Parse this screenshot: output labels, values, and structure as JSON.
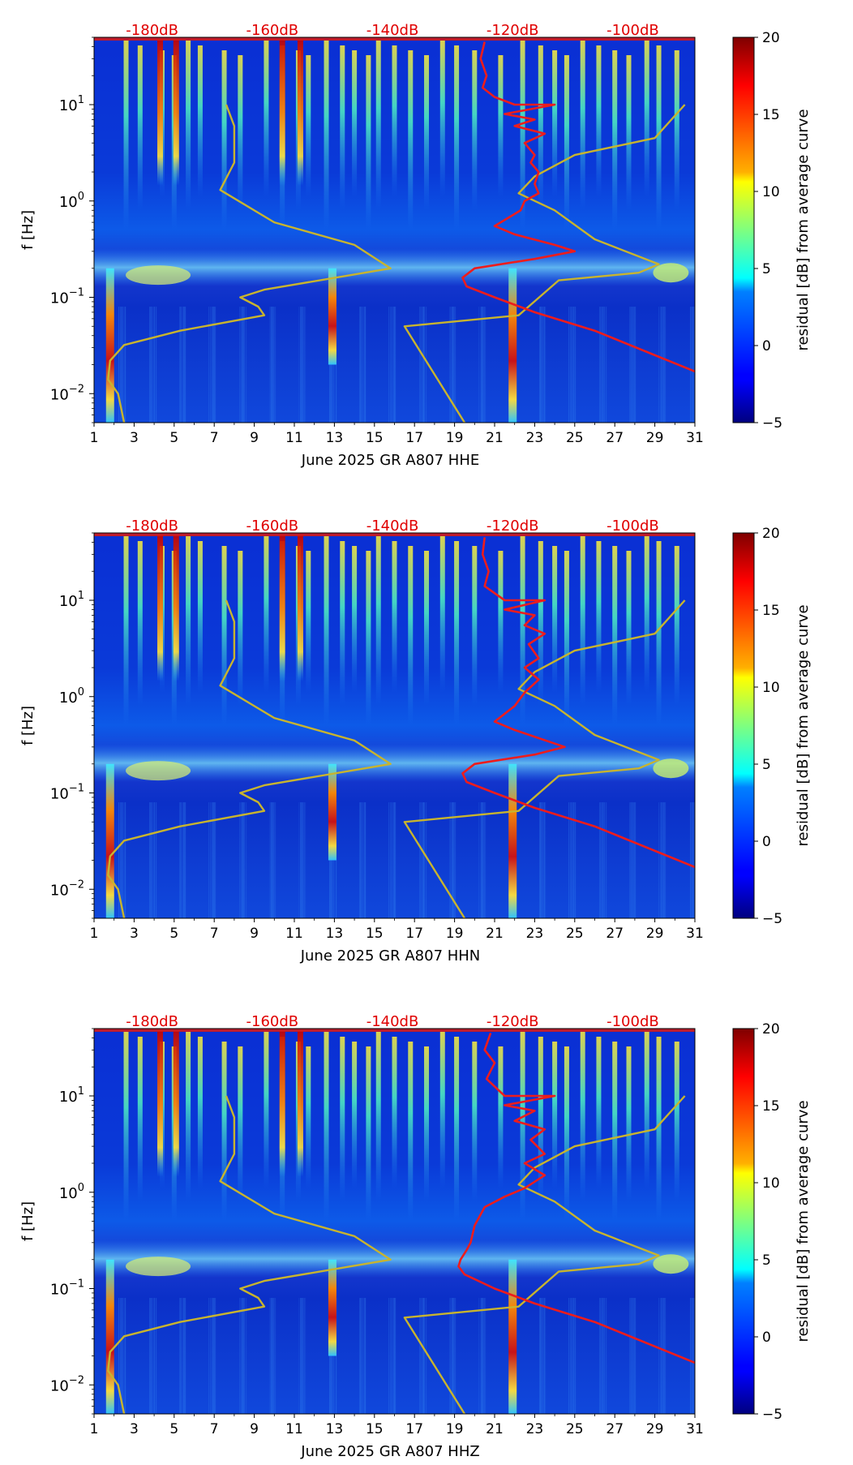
{
  "chart_data": [
    {
      "type": "heatmap",
      "title": "",
      "xlabel": "June 2025 GR A807  HHE",
      "ylabel": "f [Hz]",
      "x_ticks": [
        "1",
        "3",
        "5",
        "7",
        "9",
        "11",
        "13",
        "15",
        "17",
        "19",
        "21",
        "23",
        "25",
        "27",
        "29",
        "31"
      ],
      "xlim": [
        1,
        31
      ],
      "y_ticks": [
        "10^-2",
        "10^-1",
        "10^0",
        "10^1"
      ],
      "ylim_hz": [
        0.005,
        50
      ],
      "top_axis_ticks": [
        "-180dB",
        "-160dB",
        "-140dB",
        "-120dB",
        "-100dB"
      ],
      "colorbar": {
        "label": "residual [dB] from average curve",
        "ticks": [
          "20",
          "15",
          "10",
          "5",
          "0",
          "−5"
        ],
        "range": [
          -5,
          20
        ]
      },
      "series": [
        {
          "name": "noise model (yellow)",
          "color": "#c8b42e",
          "points": [
            [
              7.6,
              10
            ],
            [
              8.0,
              6
            ],
            [
              8.0,
              2.5
            ],
            [
              7.3,
              1.3
            ],
            [
              10,
              0.6
            ],
            [
              14,
              0.35
            ],
            [
              15.8,
              0.2
            ],
            [
              9.5,
              0.12
            ],
            [
              8.3,
              0.1
            ],
            [
              9.2,
              0.08
            ],
            [
              9.5,
              0.065
            ],
            [
              5.3,
              0.045
            ],
            [
              2.5,
              0.032
            ],
            [
              1.8,
              0.022
            ],
            [
              1.7,
              0.014
            ],
            [
              2.2,
              0.01
            ],
            [
              2.5,
              0.005
            ]
          ]
        },
        {
          "name": "noise model (yellow)",
          "color": "#c8b42e",
          "points": [
            [
              19.5,
              0.005
            ],
            [
              16.5,
              0.05
            ],
            [
              22.2,
              0.065
            ],
            [
              24.2,
              0.15
            ],
            [
              28.2,
              0.18
            ],
            [
              29.2,
              0.22
            ],
            [
              26,
              0.4
            ],
            [
              24,
              0.8
            ],
            [
              22.2,
              1.2
            ],
            [
              23,
              1.8
            ],
            [
              25,
              3
            ],
            [
              29,
              4.5
            ],
            [
              30.5,
              10
            ]
          ]
        },
        {
          "name": "average spectrum (red)",
          "color": "#ee1c1c",
          "points": [
            [
              20.5,
              45
            ],
            [
              20.3,
              30
            ],
            [
              20.6,
              20
            ],
            [
              20.4,
              15
            ],
            [
              21,
              12
            ],
            [
              22,
              10
            ],
            [
              24,
              10
            ],
            [
              21.5,
              8
            ],
            [
              23,
              7
            ],
            [
              22,
              6
            ],
            [
              23.5,
              5
            ],
            [
              22.5,
              4
            ],
            [
              23,
              3
            ],
            [
              22.8,
              2.5
            ],
            [
              23.2,
              2
            ],
            [
              23,
              1.5
            ],
            [
              23.2,
              1.2
            ],
            [
              22.5,
              1
            ],
            [
              22.3,
              0.8
            ],
            [
              21,
              0.55
            ],
            [
              22,
              0.45
            ],
            [
              24,
              0.35
            ],
            [
              25,
              0.3
            ],
            [
              23,
              0.25
            ],
            [
              20,
              0.2
            ],
            [
              19.4,
              0.16
            ],
            [
              19.6,
              0.13
            ],
            [
              21,
              0.1
            ],
            [
              23,
              0.07
            ],
            [
              26,
              0.045
            ],
            [
              31,
              0.017
            ]
          ]
        }
      ]
    },
    {
      "type": "heatmap",
      "title": "",
      "xlabel": "June 2025 GR A807  HHN",
      "ylabel": "f [Hz]",
      "x_ticks": [
        "1",
        "3",
        "5",
        "7",
        "9",
        "11",
        "13",
        "15",
        "17",
        "19",
        "21",
        "23",
        "25",
        "27",
        "29",
        "31"
      ],
      "xlim": [
        1,
        31
      ],
      "y_ticks": [
        "10^-2",
        "10^-1",
        "10^0",
        "10^1"
      ],
      "ylim_hz": [
        0.005,
        50
      ],
      "top_axis_ticks": [
        "-180dB",
        "-160dB",
        "-140dB",
        "-120dB",
        "-100dB"
      ],
      "colorbar": {
        "label": "residual [dB] from average curve",
        "ticks": [
          "20",
          "15",
          "10",
          "5",
          "0",
          "−5"
        ],
        "range": [
          -5,
          20
        ]
      },
      "series": [
        {
          "name": "noise model (yellow)",
          "color": "#c8b42e",
          "points": [
            [
              7.6,
              10
            ],
            [
              8.0,
              6
            ],
            [
              8.0,
              2.5
            ],
            [
              7.3,
              1.3
            ],
            [
              10,
              0.6
            ],
            [
              14,
              0.35
            ],
            [
              15.8,
              0.2
            ],
            [
              9.5,
              0.12
            ],
            [
              8.3,
              0.1
            ],
            [
              9.2,
              0.08
            ],
            [
              9.5,
              0.065
            ],
            [
              5.3,
              0.045
            ],
            [
              2.5,
              0.032
            ],
            [
              1.8,
              0.022
            ],
            [
              1.7,
              0.014
            ],
            [
              2.2,
              0.01
            ],
            [
              2.5,
              0.005
            ]
          ]
        },
        {
          "name": "noise model (yellow)",
          "color": "#c8b42e",
          "points": [
            [
              19.5,
              0.005
            ],
            [
              16.5,
              0.05
            ],
            [
              22.2,
              0.065
            ],
            [
              24.2,
              0.15
            ],
            [
              28.2,
              0.18
            ],
            [
              29.2,
              0.22
            ],
            [
              26,
              0.4
            ],
            [
              24,
              0.8
            ],
            [
              22.2,
              1.2
            ],
            [
              23,
              1.8
            ],
            [
              25,
              3
            ],
            [
              29,
              4.5
            ],
            [
              30.5,
              10
            ]
          ]
        },
        {
          "name": "average spectrum (red)",
          "color": "#ee1c1c",
          "points": [
            [
              20.5,
              45
            ],
            [
              20.4,
              30
            ],
            [
              20.7,
              20
            ],
            [
              20.5,
              14
            ],
            [
              21.5,
              10
            ],
            [
              23.5,
              10
            ],
            [
              21.5,
              8
            ],
            [
              23,
              7
            ],
            [
              22.5,
              5.5
            ],
            [
              23.5,
              4.5
            ],
            [
              22.7,
              3.5
            ],
            [
              23.2,
              2.5
            ],
            [
              22.5,
              2
            ],
            [
              23.2,
              1.5
            ],
            [
              22.5,
              1.1
            ],
            [
              22,
              0.8
            ],
            [
              21,
              0.55
            ],
            [
              22,
              0.45
            ],
            [
              24.5,
              0.3
            ],
            [
              23,
              0.25
            ],
            [
              20,
              0.2
            ],
            [
              19.4,
              0.16
            ],
            [
              19.6,
              0.13
            ],
            [
              21,
              0.1
            ],
            [
              23,
              0.07
            ],
            [
              26,
              0.045
            ],
            [
              31,
              0.017
            ]
          ]
        }
      ]
    },
    {
      "type": "heatmap",
      "title": "",
      "xlabel": "June 2025 GR A807  HHZ",
      "ylabel": "f [Hz]",
      "x_ticks": [
        "1",
        "3",
        "5",
        "7",
        "9",
        "11",
        "13",
        "15",
        "17",
        "19",
        "21",
        "23",
        "25",
        "27",
        "29",
        "31"
      ],
      "xlim": [
        1,
        31
      ],
      "y_ticks": [
        "10^-2",
        "10^-1",
        "10^0",
        "10^1"
      ],
      "ylim_hz": [
        0.005,
        50
      ],
      "top_axis_ticks": [
        "-180dB",
        "-160dB",
        "-140dB",
        "-120dB",
        "-100dB"
      ],
      "colorbar": {
        "label": "residual [dB] from average curve",
        "ticks": [
          "20",
          "15",
          "10",
          "5",
          "0",
          "−5"
        ],
        "range": [
          -5,
          20
        ]
      },
      "series": [
        {
          "name": "noise model (yellow)",
          "color": "#c8b42e",
          "points": [
            [
              7.6,
              10
            ],
            [
              8.0,
              6
            ],
            [
              8.0,
              2.5
            ],
            [
              7.3,
              1.3
            ],
            [
              10,
              0.6
            ],
            [
              14,
              0.35
            ],
            [
              15.8,
              0.2
            ],
            [
              9.5,
              0.12
            ],
            [
              8.3,
              0.1
            ],
            [
              9.2,
              0.08
            ],
            [
              9.5,
              0.065
            ],
            [
              5.3,
              0.045
            ],
            [
              2.5,
              0.032
            ],
            [
              1.8,
              0.022
            ],
            [
              1.7,
              0.014
            ],
            [
              2.2,
              0.01
            ],
            [
              2.5,
              0.005
            ]
          ]
        },
        {
          "name": "noise model (yellow)",
          "color": "#c8b42e",
          "points": [
            [
              19.5,
              0.005
            ],
            [
              16.5,
              0.05
            ],
            [
              22.2,
              0.065
            ],
            [
              24.2,
              0.15
            ],
            [
              28.2,
              0.18
            ],
            [
              29.2,
              0.22
            ],
            [
              26,
              0.4
            ],
            [
              24,
              0.8
            ],
            [
              22.2,
              1.2
            ],
            [
              23,
              1.8
            ],
            [
              25,
              3
            ],
            [
              29,
              4.5
            ],
            [
              30.5,
              10
            ]
          ]
        },
        {
          "name": "average spectrum (red)",
          "color": "#ee1c1c",
          "points": [
            [
              20.8,
              45
            ],
            [
              20.5,
              30
            ],
            [
              21,
              22
            ],
            [
              20.6,
              15
            ],
            [
              21.5,
              10
            ],
            [
              24,
              10
            ],
            [
              21.5,
              8
            ],
            [
              23,
              7
            ],
            [
              22,
              5.5
            ],
            [
              23.5,
              4.5
            ],
            [
              22.8,
              3.5
            ],
            [
              23.5,
              2.5
            ],
            [
              22.5,
              2
            ],
            [
              23.5,
              1.5
            ],
            [
              22.5,
              1.1
            ],
            [
              21.5,
              0.9
            ],
            [
              20.5,
              0.7
            ],
            [
              20,
              0.45
            ],
            [
              19.8,
              0.3
            ],
            [
              19.6,
              0.25
            ],
            [
              19.3,
              0.2
            ],
            [
              19.2,
              0.17
            ],
            [
              19.5,
              0.14
            ],
            [
              21,
              0.1
            ],
            [
              23,
              0.07
            ],
            [
              26,
              0.045
            ],
            [
              31,
              0.017
            ]
          ]
        }
      ]
    }
  ]
}
